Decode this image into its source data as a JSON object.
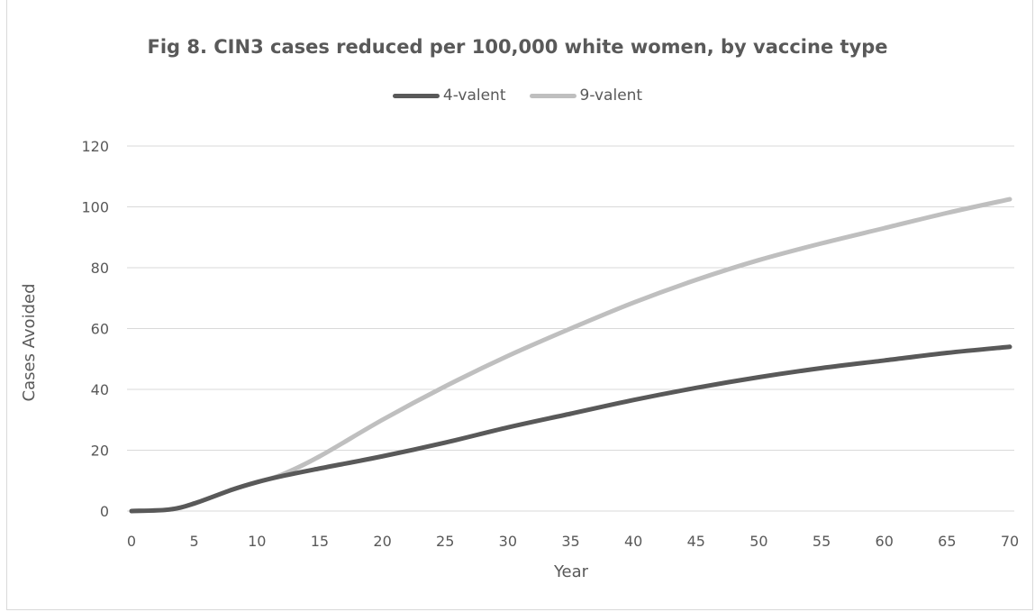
{
  "chart_data": {
    "type": "line",
    "title": "Fig 8. CIN3 cases reduced per 100,000 white women, by vaccine type",
    "xlabel": "Year",
    "ylabel": "Cases Avoided",
    "xlim": [
      0,
      70
    ],
    "ylim": [
      0,
      120
    ],
    "x_ticks": [
      "0",
      "5",
      "10",
      "15",
      "20",
      "25",
      "30",
      "35",
      "40",
      "45",
      "50",
      "55",
      "60",
      "65",
      "70"
    ],
    "y_ticks": [
      "0",
      "20",
      "40",
      "60",
      "80",
      "100",
      "120"
    ],
    "grid": "horizontal",
    "legend_position": "top",
    "x": [
      0,
      3,
      5,
      8,
      10,
      12,
      15,
      20,
      25,
      30,
      35,
      40,
      45,
      50,
      55,
      60,
      65,
      70
    ],
    "series": [
      {
        "name": "4-valent",
        "color": "#595959",
        "values": [
          0,
          0.5,
          2.5,
          7,
          9.5,
          11.5,
          14,
          18,
          22.5,
          27.5,
          32,
          36.5,
          40.5,
          44,
          47,
          49.5,
          52,
          54
        ]
      },
      {
        "name": "9-valent",
        "color": "#bfbfbf",
        "values": [
          0,
          0.5,
          2.5,
          7,
          9.5,
          12,
          18,
          30,
          41,
          51,
          60,
          68.5,
          76,
          82.5,
          88,
          93,
          98,
          102.5
        ]
      }
    ]
  }
}
